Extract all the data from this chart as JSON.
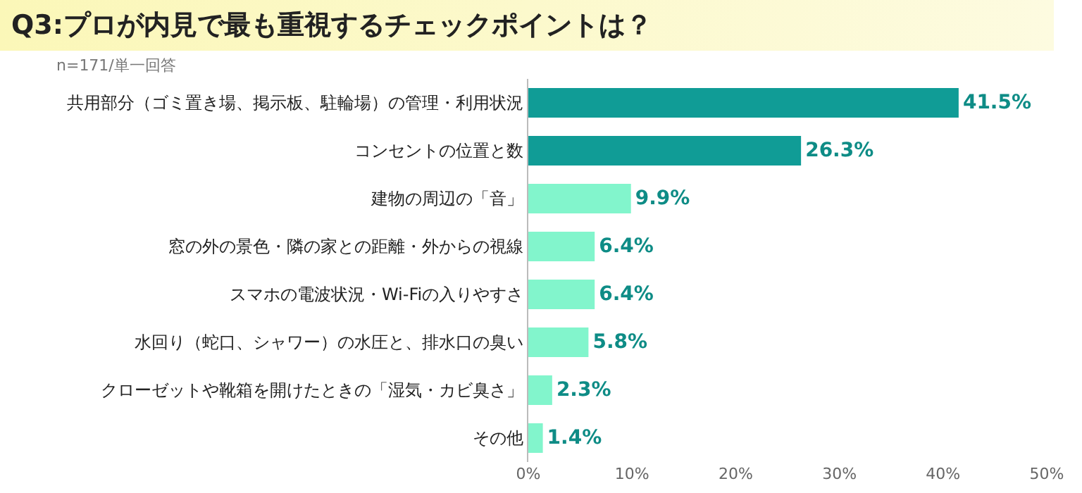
{
  "chart_data": {
    "type": "bar",
    "orientation": "horizontal",
    "title": "Q3:プロが内見で最も重視するチェックポイントは？",
    "subtitle": "n=171/単一回答",
    "categories": [
      "共用部分（ゴミ置き場、掲示板、駐輪場）の管理・利用状況",
      "コンセントの位置と数",
      "建物の周辺の「音」",
      "窓の外の景色・隣の家との距離・外からの視線",
      "スマホの電波状況・Wi-Fiの入りやすさ",
      "水回り（蛇口、シャワー）の水圧と、排水口の臭い",
      "クローゼットや靴箱を開けたときの「湿気・カビ臭さ」",
      "その他"
    ],
    "values": [
      41.5,
      26.3,
      9.9,
      6.4,
      6.4,
      5.8,
      2.3,
      1.4
    ],
    "colors": [
      "#109c96",
      "#109c96",
      "#82f5cc",
      "#82f5cc",
      "#82f5cc",
      "#82f5cc",
      "#82f5cc",
      "#82f5cc"
    ],
    "value_labels": [
      "41.5%",
      "26.3%",
      "9.9%",
      "6.4%",
      "6.4%",
      "5.8%",
      "2.3%",
      "1.4%"
    ],
    "xlim": [
      0,
      50
    ],
    "xticks": [
      {
        "value": 0,
        "label": "0%"
      },
      {
        "value": 10,
        "label": "10%"
      },
      {
        "value": 20,
        "label": "20%"
      },
      {
        "value": 30,
        "label": "30%"
      },
      {
        "value": 40,
        "label": "40%"
      },
      {
        "value": 50,
        "label": "50%"
      }
    ],
    "grid": false,
    "legend": false
  }
}
